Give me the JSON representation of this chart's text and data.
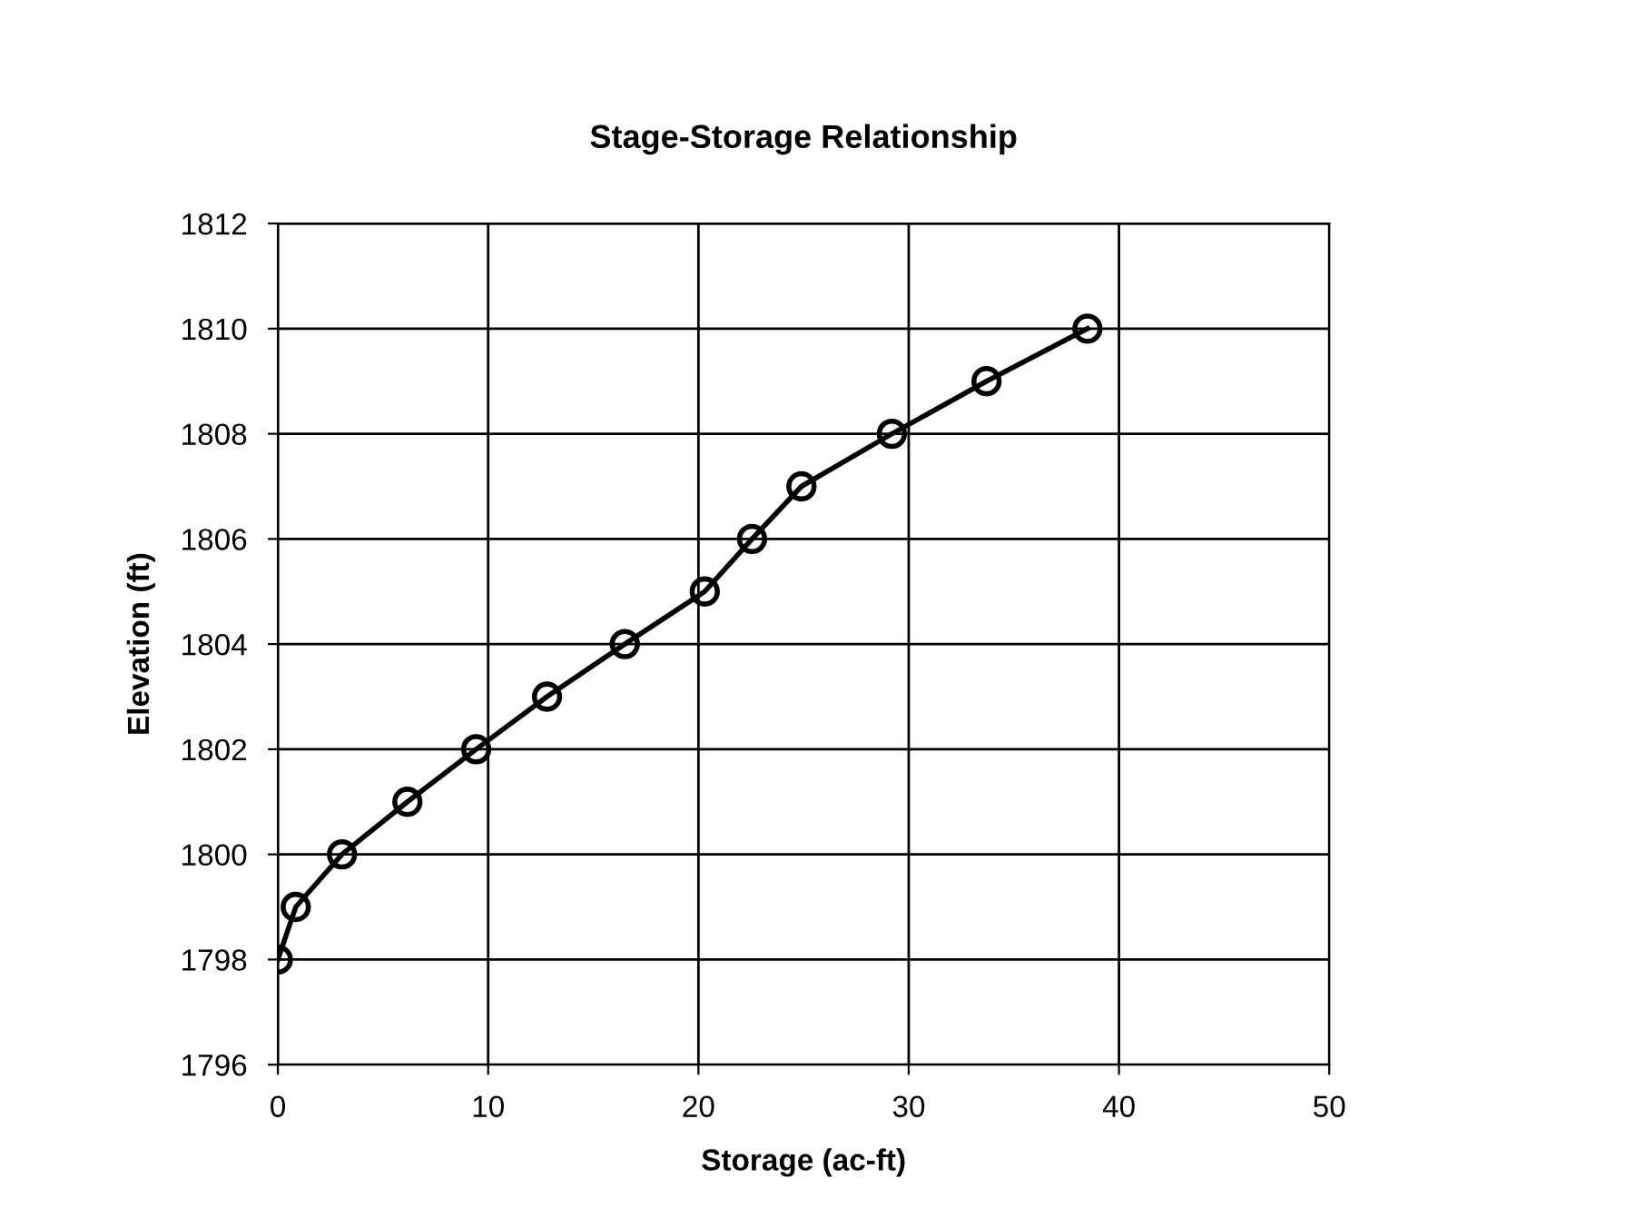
{
  "chart_data": {
    "type": "line",
    "title": "Stage-Storage Relationship",
    "xlabel": "Storage (ac-ft)",
    "ylabel": "Elevation (ft)",
    "x": [
      0,
      0.85,
      3.05,
      6.16,
      9.43,
      12.8,
      16.5,
      20.3,
      22.55,
      24.9,
      29.2,
      33.7,
      38.5
    ],
    "series": [
      {
        "color": "#000000",
        "values": [
          1798,
          1799,
          1800,
          1801,
          1802,
          1803,
          1804,
          1805,
          1806,
          1807,
          1808,
          1809,
          1810
        ]
      }
    ],
    "xlim": [
      0,
      50
    ],
    "xticks": [
      0,
      10,
      20,
      30,
      40,
      50
    ],
    "ylim": [
      1796,
      1812
    ],
    "yticks": [
      1796,
      1798,
      1800,
      1802,
      1804,
      1806,
      1808,
      1810,
      1812
    ],
    "grid": true,
    "marker": "circle",
    "line_style": "solid",
    "legend": false
  }
}
